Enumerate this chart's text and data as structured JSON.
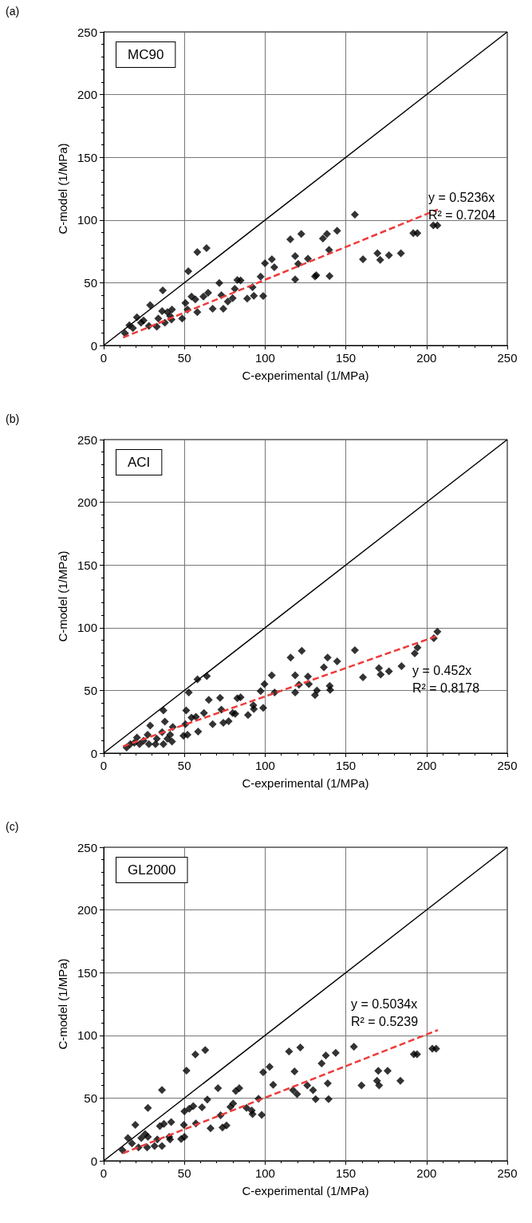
{
  "chart_data": [
    {
      "type": "scatter",
      "title": "(a)",
      "xlabel": "C-experimental (1/MPa)",
      "ylabel": "C-model (1/MPa)",
      "xlim": [
        0,
        250
      ],
      "ylim": [
        0,
        250
      ],
      "xticks": [
        0,
        50,
        100,
        150,
        200,
        250
      ],
      "yticks": [
        0,
        50,
        100,
        150,
        200,
        250
      ],
      "grid": true,
      "annotations": [
        "MC90",
        "y = 0.5236x",
        "R² = 0.7204"
      ],
      "series": [
        {
          "type": "line",
          "color": "#000000",
          "marker": "none",
          "line_style": "solid",
          "x": [
            0,
            250
          ],
          "values": [
            0,
            250
          ]
        },
        {
          "type": "scatter",
          "color": "#000000",
          "marker": "diamond",
          "x": [
            13.2,
            15.9,
            18.1,
            20.6,
            23.1,
            24.7,
            28.0,
            28.8,
            32.9,
            33.8,
            36.6,
            36.2,
            37.9,
            39.5,
            41.2,
            42.3,
            42.0,
            48.6,
            50.6,
            51.9,
            52.4,
            54.4,
            56.8,
            58.0,
            58.0,
            61.8,
            63.7,
            64.7,
            67.5,
            71.6,
            72.9,
            74.1,
            76.9,
            79.9,
            81.2,
            82.8,
            84.8,
            88.9,
            92.2,
            93.0,
            97.2,
            98.8,
            99.9,
            104.2,
            105.7,
            115.6,
            122.4,
            118.6,
            120.5,
            118.6,
            126.5,
            130.9,
            131.7,
            135.8,
            138.3,
            139.6,
            139.9,
            144.6,
            155.6,
            160.6,
            169.6,
            171.3,
            176.7,
            184.1,
            191.8,
            194.3,
            204.2,
            206.7
          ],
          "values": [
            9.7,
            16.1,
            13.9,
            22.5,
            18.2,
            19.8,
            15.6,
            32.2,
            15.0,
            21.4,
            43.9,
            27.4,
            18.2,
            26.6,
            23.4,
            28.6,
            20.6,
            21.4,
            33.8,
            28.6,
            59.2,
            38.9,
            36.8,
            74.4,
            26.6,
            38.9,
            77.6,
            42.0,
            29.3,
            49.8,
            40.0,
            29.3,
            35.0,
            37.7,
            45.2,
            52.2,
            51.8,
            37.4,
            46.5,
            39.6,
            54.9,
            39.5,
            65.5,
            68.7,
            62.3,
            84.6,
            88.9,
            71.2,
            65.0,
            52.6,
            69.2,
            55.0,
            56.0,
            85.2,
            88.9,
            76.2,
            55.4,
            91.4,
            104.3,
            68.7,
            73.4,
            68.3,
            71.9,
            73.4,
            89.5,
            89.5,
            95.8,
            95.8
          ]
        },
        {
          "type": "line",
          "color": "#ee3b3b",
          "marker": "none",
          "line_style": "dashed",
          "x": [
            12,
            207
          ],
          "values": [
            6.3,
            108.4
          ]
        }
      ]
    },
    {
      "type": "scatter",
      "title": "(b)",
      "xlabel": "C-experimental (1/MPa)",
      "ylabel": "C-model (1/MPa)",
      "xlim": [
        0,
        250
      ],
      "ylim": [
        0,
        250
      ],
      "xticks": [
        0,
        50,
        100,
        150,
        200,
        250
      ],
      "yticks": [
        0,
        50,
        100,
        150,
        200,
        250
      ],
      "grid": true,
      "annotations": [
        "ACI",
        "y = 0.452x",
        "R² = 0.8178"
      ],
      "series": [
        {
          "type": "line",
          "color": "#000000",
          "marker": "none",
          "line_style": "solid",
          "x": [
            0,
            250
          ],
          "values": [
            0,
            250
          ]
        },
        {
          "type": "scatter",
          "color": "#000000",
          "marker": "diamond",
          "x": [
            14.2,
            16.5,
            19.0,
            20.6,
            22.2,
            24.7,
            27.2,
            28.0,
            28.8,
            32.1,
            32.9,
            36.2,
            37.0,
            37.0,
            37.9,
            39.5,
            41.2,
            42.3,
            42.8,
            49.4,
            50.6,
            51.1,
            52.7,
            51.9,
            54.4,
            57.1,
            58.1,
            58.5,
            62.1,
            63.9,
            65.1,
            67.5,
            72.1,
            72.9,
            74.1,
            77.4,
            79.9,
            81.5,
            82.8,
            84.8,
            89.4,
            92.7,
            93.0,
            98.8,
            97.2,
            99.6,
            104.1,
            105.9,
            115.8,
            122.7,
            118.6,
            121.0,
            118.6,
            126.5,
            127.1,
            130.9,
            132.1,
            136.4,
            138.7,
            140.0,
            140.3,
            144.6,
            155.6,
            160.6,
            170.5,
            171.6,
            176.7,
            184.5,
            192.7,
            194.4,
            204.5,
            206.7
          ],
          "values": [
            4.4,
            7.2,
            8.2,
            12.4,
            7.2,
            9.9,
            14.6,
            7.2,
            21.9,
            7.2,
            11.4,
            16.7,
            7.2,
            34.0,
            25.1,
            11.4,
            14.6,
            9.3,
            20.9,
            13.9,
            23.0,
            34.0,
            48.3,
            14.6,
            28.3,
            28.9,
            58.9,
            17.1,
            31.9,
            61.4,
            42.4,
            23.0,
            44.1,
            34.6,
            24.1,
            25.5,
            31.9,
            31.4,
            43.7,
            44.5,
            30.4,
            38.2,
            35.2,
            36.1,
            49.4,
            55.1,
            62.0,
            48.3,
            76.2,
            81.6,
            62.0,
            54.6,
            48.3,
            61.0,
            55.1,
            46.2,
            50.0,
            68.4,
            76.2,
            53.6,
            50.4,
            73.2,
            82.1,
            60.5,
            67.7,
            62.7,
            65.2,
            69.4,
            79.5,
            84.2,
            91.6,
            96.8
          ]
        },
        {
          "type": "line",
          "color": "#ee3b3b",
          "marker": "none",
          "line_style": "dashed",
          "x": [
            12,
            207
          ],
          "values": [
            5.4,
            93.6
          ]
        }
      ]
    },
    {
      "type": "scatter",
      "title": "(c)",
      "xlabel": "C-experimental (1/MPa)",
      "ylabel": "C-model (1/MPa)",
      "xlim": [
        0,
        250
      ],
      "ylim": [
        0,
        250
      ],
      "xticks": [
        0,
        50,
        100,
        150,
        200,
        250
      ],
      "yticks": [
        0,
        50,
        100,
        150,
        200,
        250
      ],
      "grid": true,
      "annotations": [
        "GL2000",
        "y = 0.5034x",
        "R² = 0.5239"
      ],
      "series": [
        {
          "type": "line",
          "color": "#000000",
          "marker": "none",
          "line_style": "solid",
          "x": [
            0,
            250
          ],
          "values": [
            0,
            250
          ]
        },
        {
          "type": "scatter",
          "color": "#000000",
          "marker": "diamond",
          "x": [
            11.7,
            15.0,
            17.5,
            19.6,
            21.6,
            23.3,
            25.7,
            27.4,
            27.4,
            26.9,
            31.5,
            33.2,
            34.8,
            36.1,
            36.1,
            37.3,
            40.6,
            41.1,
            41.8,
            48.0,
            49.7,
            50.0,
            51.3,
            50.0,
            53.0,
            55.5,
            56.8,
            57.1,
            60.9,
            62.9,
            64.2,
            66.2,
            70.8,
            72.4,
            73.6,
            76.1,
            78.5,
            80.2,
            81.8,
            84.0,
            88.5,
            92.2,
            91.7,
            95.9,
            97.9,
            98.8,
            102.8,
            105.0,
            114.8,
            121.8,
            118.2,
            117.3,
            119.8,
            126.1,
            129.7,
            131.3,
            135.0,
            137.6,
            138.8,
            139.3,
            143.7,
            155.0,
            159.7,
            169.3,
            170.6,
            170.1,
            175.9,
            183.8,
            192.1,
            194.1,
            203.6,
            205.9
          ],
          "values": [
            8.5,
            18.1,
            13.8,
            28.7,
            10.6,
            18.1,
            21.3,
            42.1,
            19.1,
            10.6,
            11.7,
            17.0,
            27.7,
            56.4,
            11.7,
            29.4,
            19.1,
            17.0,
            30.9,
            17.4,
            28.7,
            19.1,
            71.9,
            39.4,
            41.5,
            43.6,
            84.7,
            29.8,
            42.6,
            88.3,
            48.9,
            26.0,
            57.9,
            36.2,
            26.6,
            28.1,
            43.0,
            45.7,
            55.7,
            57.9,
            42.1,
            37.2,
            40.0,
            49.4,
            36.6,
            70.6,
            74.9,
            60.6,
            87.2,
            90.4,
            71.2,
            56.3,
            53.1,
            60.1,
            56.3,
            49.2,
            77.6,
            83.9,
            61.7,
            49.2,
            86.0,
            91.0,
            60.1,
            63.8,
            60.1,
            71.8,
            71.8,
            63.8,
            85.0,
            85.0,
            89.3,
            89.3
          ]
        },
        {
          "type": "line",
          "color": "#ee3b3b",
          "marker": "none",
          "line_style": "dashed",
          "x": [
            12,
            207
          ],
          "values": [
            6.0,
            104.2
          ]
        }
      ]
    }
  ]
}
